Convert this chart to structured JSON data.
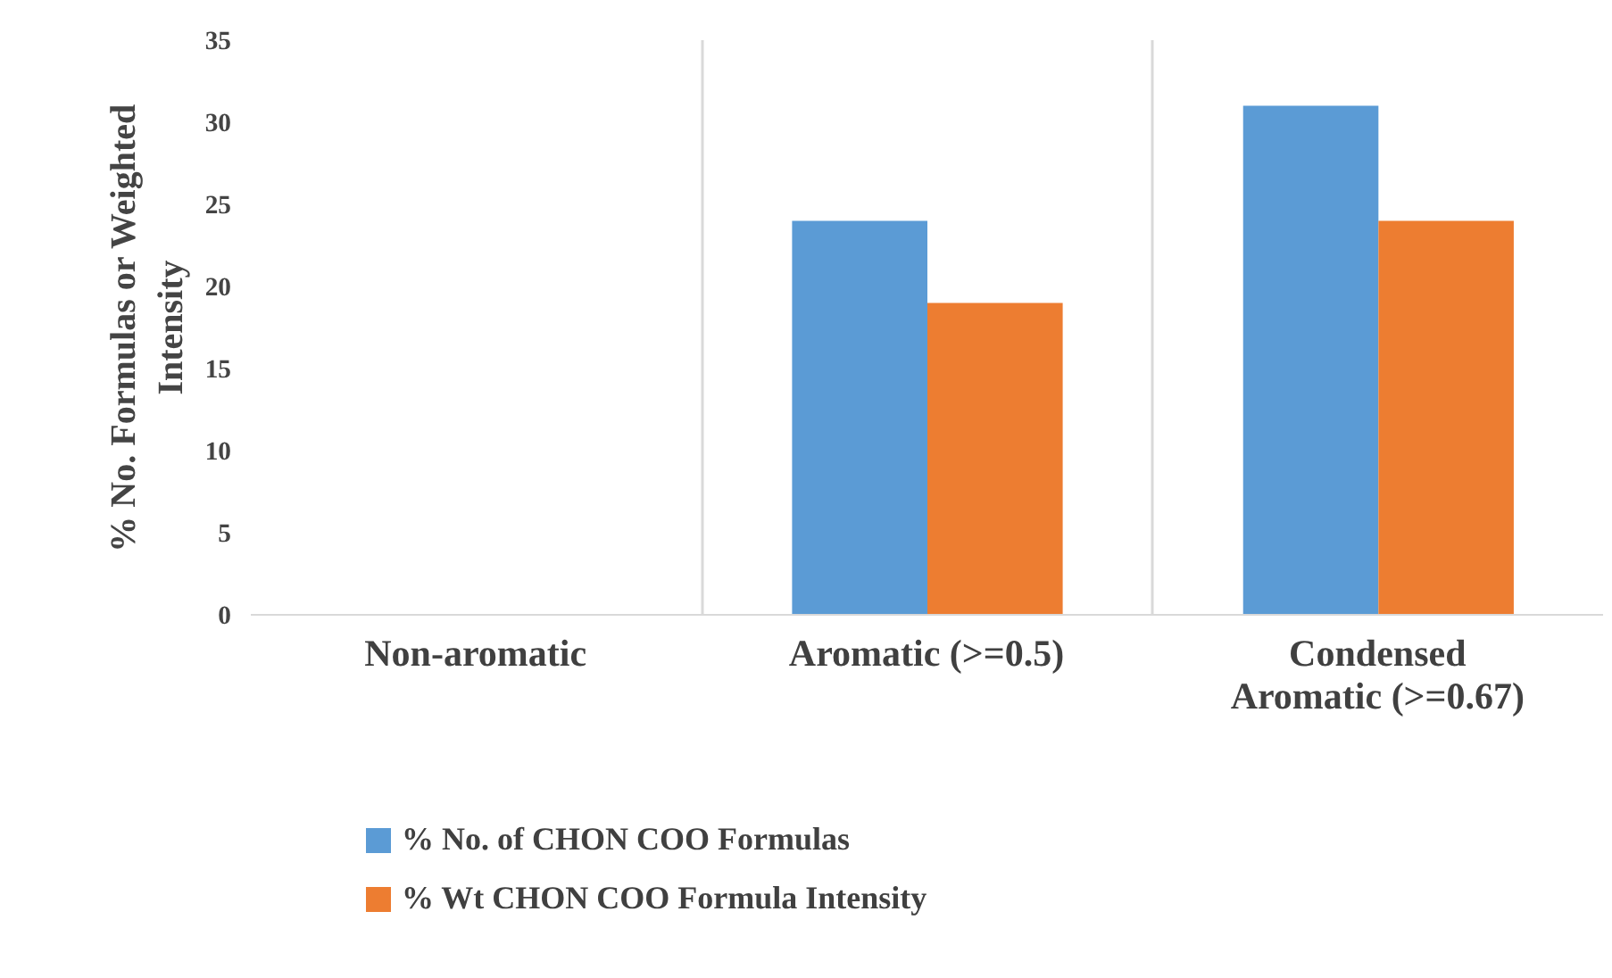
{
  "chart_data": {
    "type": "bar",
    "ylabel": "% No. Formulas or Weighted Intensity",
    "categories": [
      "Non-aromatic",
      "Aromatic (>=0.5)",
      "Condensed Aromatic (>=0.67)"
    ],
    "series": [
      {
        "name": "% No. of CHON COO Formulas",
        "color": "#5b9bd5",
        "values": [
          0,
          24,
          31
        ]
      },
      {
        "name": "% Wt CHON COO Formula Intensity",
        "color": "#ed7d31",
        "values": [
          0,
          19,
          24
        ]
      }
    ],
    "ylim": [
      0,
      35
    ],
    "yticks": [
      0,
      5,
      10,
      15,
      20,
      25,
      30,
      35
    ],
    "grid": "x",
    "legend": "bottom"
  }
}
